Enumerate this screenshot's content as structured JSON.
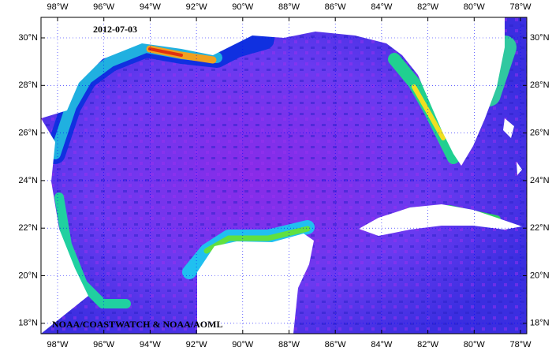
{
  "map": {
    "date": "2012-07-03",
    "credit": "NOAA/COASTWATCH & NOAA/AOML",
    "lon_ticks": [
      "98°W",
      "96°W",
      "94°W",
      "92°W",
      "90°W",
      "88°W",
      "86°W",
      "84°W",
      "82°W",
      "80°W",
      "78°W"
    ],
    "lat_ticks": [
      "30°N",
      "28°N",
      "26°N",
      "24°N",
      "22°N",
      "20°N",
      "18°N"
    ]
  }
}
